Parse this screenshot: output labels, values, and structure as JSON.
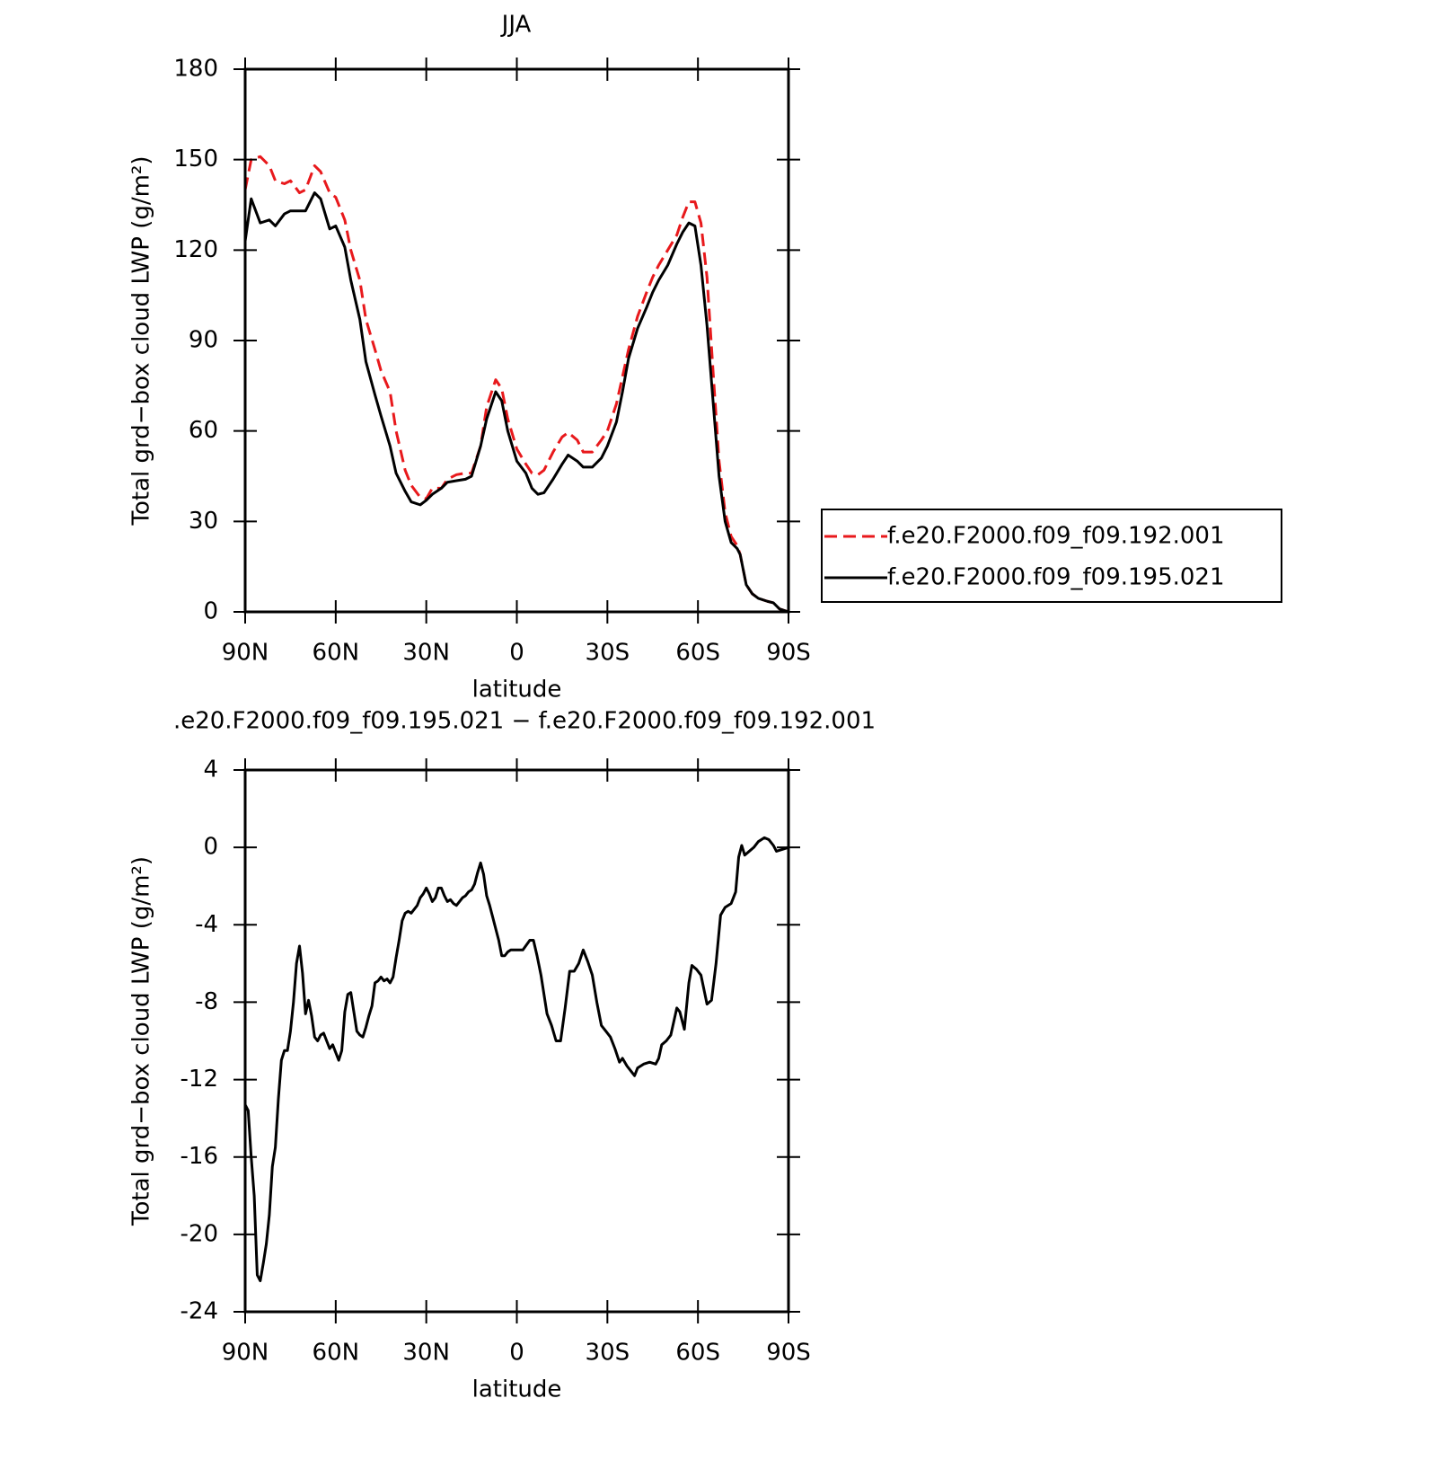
{
  "chart_data": [
    {
      "type": "line",
      "title": "JJA",
      "xlabel": "latitude",
      "ylabel": "Total grd−box cloud LWP (g/m²)",
      "x": [
        90,
        88,
        85,
        82,
        80,
        77,
        75,
        72,
        70,
        67,
        65,
        62,
        60,
        57,
        55,
        52,
        50,
        47,
        45,
        42,
        40,
        37,
        35,
        32,
        30,
        28,
        25,
        23,
        20,
        17,
        15,
        12,
        10,
        7,
        5,
        3,
        0,
        -3,
        -5,
        -7,
        -9,
        -12,
        -15,
        -17,
        -20,
        -22,
        -25,
        -28,
        -30,
        -33,
        -35,
        -37,
        -40,
        -43,
        -45,
        -47,
        -50,
        -53,
        -55,
        -57,
        -59,
        -61,
        -63,
        -65,
        -67,
        -69,
        -71,
        -73,
        -74,
        -76,
        -78,
        -80,
        -83,
        -85,
        -87,
        -90
      ],
      "series": [
        {
          "name": "f.e20.F2000.f09_f09.192.001",
          "color": "#e8191c",
          "line_style": "dashed",
          "values": [
            140,
            150,
            151,
            148,
            143,
            142,
            143,
            139,
            140,
            148,
            146,
            139,
            137.5,
            130,
            120,
            110,
            97,
            87,
            80,
            73,
            60,
            47,
            42,
            38,
            37.5,
            41,
            41,
            44,
            45.5,
            46,
            46,
            55,
            68,
            77,
            74,
            64,
            54,
            49,
            46,
            45.5,
            47,
            53,
            58,
            59.5,
            57,
            53,
            53,
            57,
            60,
            69,
            78,
            87,
            98,
            106,
            111,
            115,
            120,
            125,
            131,
            136,
            136,
            129,
            111,
            80,
            50,
            33,
            25,
            22,
            19,
            9,
            6,
            4.5,
            3.5,
            3,
            1,
            0
          ]
        },
        {
          "name": "f.e20.F2000.f09_f09.195.021",
          "color": "#000000",
          "line_style": "solid",
          "values": [
            123,
            137,
            129,
            130,
            128,
            132,
            133,
            133,
            133,
            139,
            137,
            127,
            128,
            121,
            110,
            97,
            83,
            72,
            65,
            55,
            46,
            40,
            36.5,
            35.5,
            37,
            39,
            41,
            43,
            43.5,
            44,
            45,
            55,
            64,
            73,
            70,
            60,
            50,
            46,
            41,
            39,
            39.5,
            44,
            49,
            52,
            50,
            48,
            48,
            51,
            55,
            63,
            73,
            84,
            94,
            101,
            106,
            110,
            115,
            122,
            126,
            129,
            128,
            115,
            95,
            70,
            45,
            30,
            23,
            21,
            19,
            9,
            6,
            4.5,
            3.5,
            3,
            1,
            0
          ]
        }
      ],
      "xlim": [
        90,
        -90
      ],
      "xticks": [
        {
          "value": 90,
          "label": "90N"
        },
        {
          "value": 60,
          "label": "60N"
        },
        {
          "value": 30,
          "label": "30N"
        },
        0,
        {
          "value": -30,
          "label": "30S"
        },
        {
          "value": -60,
          "label": "60S"
        },
        {
          "value": -90,
          "label": "90S"
        }
      ],
      "ylim": [
        0,
        180
      ],
      "yticks": [
        0,
        30,
        60,
        90,
        120,
        150,
        180
      ],
      "legend": "right"
    },
    {
      "type": "line",
      "title": ".e20.F2000.f09_f09.195.021 − f.e20.F2000.f09_f09.192.001",
      "xlabel": "latitude",
      "ylabel": "Total grd−box cloud LWP (g/m²)",
      "x": [
        90,
        89,
        88,
        87,
        86,
        85,
        84,
        83,
        82,
        81,
        80,
        79,
        78,
        77,
        76,
        75,
        74,
        73,
        72,
        71,
        70,
        69,
        68,
        67,
        66,
        65,
        64,
        63,
        62,
        61,
        60,
        59,
        58,
        57,
        56,
        55,
        54,
        53,
        52,
        51,
        50,
        49,
        48,
        47,
        46,
        45,
        44,
        43,
        42,
        41,
        40,
        39,
        38,
        37,
        36,
        35,
        34,
        33,
        32,
        31,
        30,
        29,
        28,
        27,
        26,
        25,
        24,
        23,
        22,
        21,
        20,
        19,
        18,
        17,
        16,
        15,
        14,
        13,
        12,
        11,
        10,
        9,
        8,
        7,
        6,
        5,
        4,
        3,
        2,
        1,
        0,
        -2,
        -4.3,
        -5.5,
        -6.7,
        -8,
        -10,
        -11.5,
        -13,
        -14.5,
        -16,
        -17.5,
        -19,
        -20.5,
        -22,
        -23.5,
        -25,
        -26.5,
        -28,
        -29.5,
        -31,
        -32.5,
        -34,
        -35,
        -36.5,
        -38,
        -39,
        -40,
        -42,
        -44,
        -46,
        -47,
        -48,
        -49.5,
        -51,
        -53,
        -54,
        -55.5,
        -57,
        -58,
        -59.5,
        -61,
        -63,
        -64.5,
        -66,
        -67.5,
        -69,
        -71,
        -72.5,
        -73.5,
        -74.5,
        -75.5,
        -77,
        -78.5,
        -80,
        -82,
        -83.5,
        -85,
        -86,
        -88,
        -90
      ],
      "series": [
        {
          "color": "#000000",
          "line_style": "solid",
          "values": [
            -13.3,
            -13.6,
            -16,
            -18,
            -22.1,
            -22.4,
            -21.5,
            -20.5,
            -19,
            -16.5,
            -15.5,
            -13,
            -11,
            -10.5,
            -10.5,
            -9.5,
            -8,
            -6,
            -5.1,
            -6.5,
            -8.6,
            -7.9,
            -8.7,
            -9.8,
            -10,
            -9.7,
            -9.6,
            -10,
            -10.4,
            -10.2,
            -10.6,
            -11,
            -10.5,
            -8.5,
            -7.6,
            -7.5,
            -8.5,
            -9.5,
            -9.7,
            -9.8,
            -9.3,
            -8.7,
            -8.2,
            -7,
            -6.9,
            -6.7,
            -6.9,
            -6.8,
            -7,
            -6.7,
            -5.7,
            -4.8,
            -3.8,
            -3.4,
            -3.3,
            -3.4,
            -3.2,
            -3,
            -2.6,
            -2.4,
            -2.1,
            -2.4,
            -2.8,
            -2.6,
            -2.1,
            -2.1,
            -2.5,
            -2.8,
            -2.7,
            -2.9,
            -3,
            -2.8,
            -2.6,
            -2.5,
            -2.3,
            -2.2,
            -1.9,
            -1.3,
            -0.8,
            -1.4,
            -2.5,
            -3,
            -3.6,
            -4.2,
            -4.8,
            -5.6,
            -5.6,
            -5.4,
            -5.3,
            -5.3,
            -5.3,
            -5.3,
            -4.8,
            -4.8,
            -5.6,
            -6.6,
            -8.6,
            -9.2,
            -10,
            -10,
            -8.3,
            -6.4,
            -6.4,
            -6,
            -5.3,
            -5.9,
            -6.6,
            -8,
            -9.2,
            -9.5,
            -9.8,
            -10.4,
            -11.1,
            -10.9,
            -11.3,
            -11.6,
            -11.8,
            -11.4,
            -11.2,
            -11.1,
            -11.2,
            -10.9,
            -10.2,
            -10,
            -9.7,
            -8.3,
            -8.5,
            -9.4,
            -7,
            -6.1,
            -6.3,
            -6.6,
            -8.1,
            -7.9,
            -6,
            -3.5,
            -3.1,
            -2.9,
            -2.3,
            -0.5,
            0.1,
            -0.4,
            -0.2,
            0,
            0.3,
            0.5,
            0.4,
            0.1,
            -0.2,
            -0.1,
            0
          ]
        }
      ],
      "xlim": [
        90,
        -90
      ],
      "xticks": [
        {
          "value": 90,
          "label": "90N"
        },
        {
          "value": 60,
          "label": "60N"
        },
        {
          "value": 30,
          "label": "30N"
        },
        0,
        {
          "value": -30,
          "label": "30S"
        },
        {
          "value": -60,
          "label": "60S"
        },
        {
          "value": -90,
          "label": "90S"
        }
      ],
      "ylim": [
        -24,
        4
      ],
      "yticks": [
        -24,
        -20,
        -16,
        -12,
        -8,
        -4,
        0,
        4
      ]
    }
  ]
}
